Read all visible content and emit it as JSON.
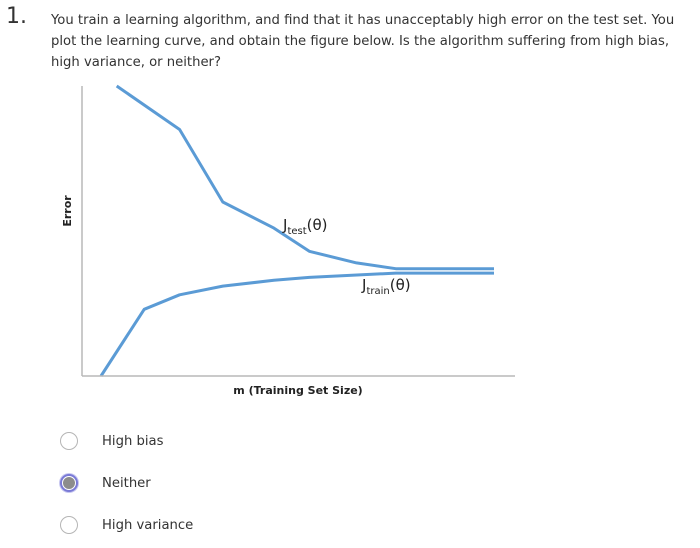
{
  "question": {
    "number": "1.",
    "text": "You train a learning algorithm, and find that it has unacceptably high error on the test set. You plot the learning curve, and obtain the figure below. Is the algorithm suffering from high bias, high variance, or neither?"
  },
  "chart_data": {
    "type": "line",
    "ylabel": "Error",
    "xlabel": "m (Training Set Size)",
    "grid": false,
    "series": [
      {
        "name": "Jtest(θ)",
        "label_main": "J",
        "label_sub": "test",
        "label_arg": "(θ)",
        "x": [
          0.04,
          0.2,
          0.31,
          0.44,
          0.53,
          0.65,
          0.75,
          1.0
        ],
        "y": [
          1.0,
          0.85,
          0.6,
          0.51,
          0.43,
          0.39,
          0.37,
          0.37
        ]
      },
      {
        "name": "Jtrain(θ)",
        "label_main": "J",
        "label_sub": "train",
        "label_arg": "(θ)",
        "x": [
          0.0,
          0.11,
          0.2,
          0.31,
          0.44,
          0.53,
          0.75,
          1.0
        ],
        "y": [
          0.0,
          0.23,
          0.28,
          0.31,
          0.33,
          0.34,
          0.355,
          0.355
        ]
      }
    ],
    "colors": {
      "line": "#5b9bd5",
      "axis": "#b8b8b8"
    }
  },
  "options": [
    {
      "label": "High bias",
      "selected": false
    },
    {
      "label": "Neither",
      "selected": true
    },
    {
      "label": "High variance",
      "selected": false
    }
  ]
}
